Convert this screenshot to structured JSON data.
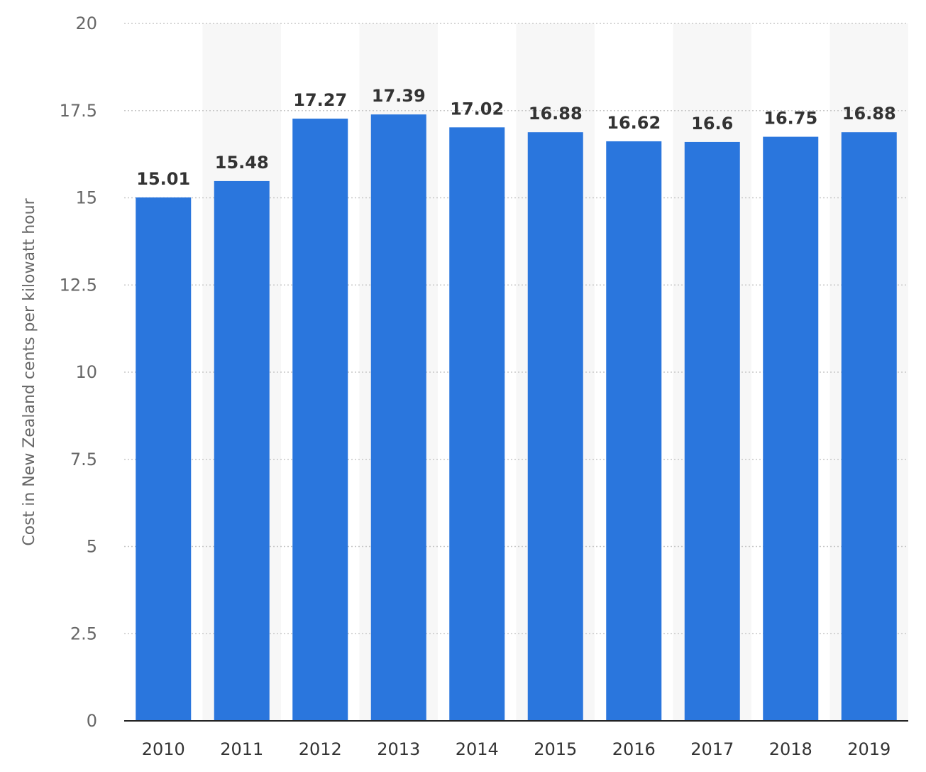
{
  "chart_data": {
    "type": "bar",
    "categories": [
      "2010",
      "2011",
      "2012",
      "2013",
      "2014",
      "2015",
      "2016",
      "2017",
      "2018",
      "2019"
    ],
    "values": [
      15.01,
      15.48,
      17.27,
      17.39,
      17.02,
      16.88,
      16.62,
      16.6,
      16.75,
      16.88
    ],
    "value_labels": [
      "15.01",
      "15.48",
      "17.27",
      "17.39",
      "17.02",
      "16.88",
      "16.62",
      "16.6",
      "16.75",
      "16.88"
    ],
    "ylabel": "Cost in New Zealand cents per kilowatt hour",
    "ylim": [
      0,
      20
    ],
    "yticks": [
      0,
      2.5,
      5,
      7.5,
      10,
      12.5,
      15,
      17.5,
      20
    ],
    "ytick_labels": [
      "0",
      "2.5",
      "5",
      "7.5",
      "10",
      "12.5",
      "15",
      "17.5",
      "20"
    ],
    "grid": true,
    "bar_color": "#2a76dd",
    "alt_band_color": "#f7f7f7"
  }
}
